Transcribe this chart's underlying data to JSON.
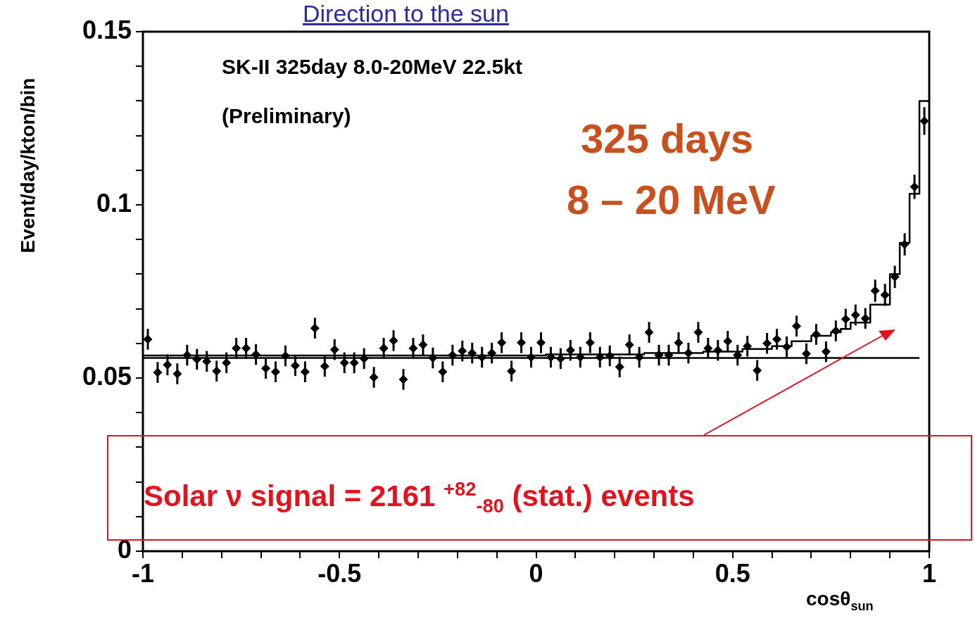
{
  "chart_data": {
    "type": "scatter",
    "title": "Direction to the sun",
    "xlabel": "cosθ$_{sun}$",
    "ylabel": "Event/day/kton/bin",
    "x": [
      -0.9875,
      -0.9625,
      -0.9375,
      -0.9125,
      -0.8875,
      -0.8625,
      -0.8375,
      -0.8125,
      -0.7875,
      -0.7625,
      -0.7375,
      -0.7125,
      -0.6875,
      -0.6625,
      -0.6375,
      -0.6125,
      -0.5875,
      -0.5625,
      -0.5375,
      -0.5125,
      -0.4875,
      -0.4625,
      -0.4375,
      -0.4125,
      -0.3875,
      -0.3625,
      -0.3375,
      -0.3125,
      -0.2875,
      -0.2625,
      -0.2375,
      -0.2125,
      -0.1875,
      -0.1625,
      -0.1375,
      -0.1125,
      -0.0875,
      -0.0625,
      -0.0375,
      -0.0125,
      0.0125,
      0.0375,
      0.0625,
      0.0875,
      0.1125,
      0.1375,
      0.1625,
      0.1875,
      0.2125,
      0.2375,
      0.2625,
      0.2875,
      0.3125,
      0.3375,
      0.3625,
      0.3875,
      0.4125,
      0.4375,
      0.4625,
      0.4875,
      0.5125,
      0.5375,
      0.5625,
      0.5875,
      0.6125,
      0.6375,
      0.6625,
      0.6875,
      0.7125,
      0.7375,
      0.7625,
      0.7875,
      0.8125,
      0.8375,
      0.8625,
      0.8875,
      0.9125,
      0.9375,
      0.9625,
      0.9875
    ],
    "series": [
      {
        "type": "scatter",
        "color": "#000000",
        "marker": "diamond",
        "values": [
          0.0612,
          0.0516,
          0.0538,
          0.0512,
          0.0566,
          0.0554,
          0.0548,
          0.052,
          0.0544,
          0.0586,
          0.0586,
          0.0568,
          0.0528,
          0.0518,
          0.0564,
          0.0536,
          0.0518,
          0.0644,
          0.0534,
          0.0582,
          0.0544,
          0.0544,
          0.0556,
          0.0502,
          0.0586,
          0.0608,
          0.0496,
          0.0586,
          0.0596,
          0.0558,
          0.0518,
          0.0566,
          0.0578,
          0.0572,
          0.056,
          0.0572,
          0.0602,
          0.052,
          0.0602,
          0.056,
          0.0602,
          0.056,
          0.0556,
          0.058,
          0.056,
          0.0602,
          0.056,
          0.0564,
          0.0532,
          0.0596,
          0.056,
          0.0632,
          0.0566,
          0.0566,
          0.0602,
          0.0572,
          0.0632,
          0.0586,
          0.058,
          0.0606,
          0.0566,
          0.0592,
          0.0522,
          0.06,
          0.0612,
          0.059,
          0.065,
          0.057,
          0.0626,
          0.0576,
          0.0636,
          0.067,
          0.0682,
          0.0672,
          0.0752,
          0.074,
          0.0792,
          0.0886,
          0.1052,
          0.1242
        ],
        "errors": [
          0.003,
          0.003,
          0.003,
          0.003,
          0.003,
          0.003,
          0.003,
          0.003,
          0.003,
          0.003,
          0.003,
          0.003,
          0.003,
          0.003,
          0.003,
          0.003,
          0.003,
          0.003,
          0.003,
          0.003,
          0.003,
          0.003,
          0.003,
          0.003,
          0.003,
          0.003,
          0.003,
          0.003,
          0.003,
          0.003,
          0.003,
          0.003,
          0.003,
          0.003,
          0.003,
          0.003,
          0.003,
          0.003,
          0.003,
          0.003,
          0.003,
          0.003,
          0.003,
          0.003,
          0.003,
          0.003,
          0.003,
          0.003,
          0.003,
          0.003,
          0.003,
          0.003,
          0.003,
          0.003,
          0.003,
          0.003,
          0.003,
          0.003,
          0.003,
          0.003,
          0.003,
          0.003,
          0.003,
          0.003,
          0.003,
          0.003,
          0.003,
          0.003,
          0.003,
          0.003,
          0.003,
          0.003,
          0.003,
          0.003,
          0.0032,
          0.0032,
          0.0032,
          0.0032,
          0.0035,
          0.004
        ]
      },
      {
        "type": "histogram",
        "color": "#000000",
        "bins": [
          -1,
          -0.975,
          -0.95,
          -0.925,
          -0.9,
          -0.875,
          -0.85,
          -0.825,
          -0.8,
          -0.775,
          -0.75,
          -0.725,
          -0.7,
          -0.675,
          -0.65,
          -0.625,
          -0.6,
          -0.575,
          -0.55,
          -0.525,
          -0.5,
          -0.475,
          -0.45,
          -0.425,
          -0.4,
          -0.375,
          -0.35,
          -0.325,
          -0.3,
          -0.275,
          -0.25,
          -0.225,
          -0.2,
          -0.175,
          -0.15,
          -0.125,
          -0.1,
          -0.075,
          -0.05,
          -0.025,
          0,
          0.025,
          0.05,
          0.075,
          0.1,
          0.125,
          0.15,
          0.175,
          0.2,
          0.225,
          0.25,
          0.275,
          0.3,
          0.325,
          0.35,
          0.375,
          0.4,
          0.425,
          0.45,
          0.475,
          0.5,
          0.525,
          0.55,
          0.575,
          0.6,
          0.625,
          0.65,
          0.675,
          0.7,
          0.725,
          0.75,
          0.775,
          0.8,
          0.825,
          0.85,
          0.875,
          0.9,
          0.925,
          0.95,
          0.975,
          1
        ],
        "values": [
          0.0565,
          0.0565,
          0.0565,
          0.0565,
          0.0565,
          0.0565,
          0.0565,
          0.0565,
          0.0565,
          0.0565,
          0.0565,
          0.0565,
          0.0565,
          0.0565,
          0.0565,
          0.0565,
          0.0565,
          0.0565,
          0.0565,
          0.0565,
          0.0565,
          0.0565,
          0.0565,
          0.0565,
          0.0565,
          0.0565,
          0.0565,
          0.0565,
          0.0565,
          0.0565,
          0.0565,
          0.0565,
          0.0565,
          0.0565,
          0.0565,
          0.0565,
          0.0565,
          0.0565,
          0.0565,
          0.0565,
          0.0565,
          0.0568,
          0.0568,
          0.0568,
          0.0568,
          0.0568,
          0.0568,
          0.0568,
          0.0568,
          0.0568,
          0.0568,
          0.0572,
          0.0572,
          0.0572,
          0.0572,
          0.0572,
          0.0572,
          0.0576,
          0.0576,
          0.0576,
          0.0576,
          0.0584,
          0.0584,
          0.0584,
          0.0592,
          0.0592,
          0.0606,
          0.0606,
          0.0622,
          0.0622,
          0.0632,
          0.0642,
          0.066,
          0.066,
          0.0712,
          0.0712,
          0.08,
          0.089,
          0.1032,
          0.13
        ]
      },
      {
        "type": "line",
        "color": "#000000",
        "x": [
          -1,
          0.975
        ],
        "values": [
          0.0558,
          0.0558
        ]
      }
    ],
    "xlim": [
      -1,
      1
    ],
    "xticks": [
      -1,
      {
        "value": -0.9,
        "label": null
      },
      {
        "value": -0.8,
        "label": null
      },
      {
        "value": -0.7,
        "label": null
      },
      {
        "value": -0.6,
        "label": null
      },
      -0.5,
      {
        "value": -0.4,
        "label": null
      },
      {
        "value": -0.3,
        "label": null
      },
      {
        "value": -0.2,
        "label": null
      },
      {
        "value": -0.1,
        "label": null
      },
      0,
      {
        "value": 0.1,
        "label": null
      },
      {
        "value": 0.2,
        "label": null
      },
      {
        "value": 0.3,
        "label": null
      },
      {
        "value": 0.4,
        "label": null
      },
      0.5,
      {
        "value": 0.6,
        "label": null
      },
      {
        "value": 0.7,
        "label": null
      },
      {
        "value": 0.8,
        "label": null
      },
      {
        "value": 0.9,
        "label": null
      },
      1
    ],
    "ylim": [
      0,
      0.15
    ],
    "yticks": [
      0,
      {
        "value": 0.01,
        "label": null
      },
      {
        "value": 0.02,
        "label": null
      },
      {
        "value": 0.03,
        "label": null
      },
      {
        "value": 0.04,
        "label": null
      },
      0.05,
      {
        "value": 0.06,
        "label": null
      },
      {
        "value": 0.07,
        "label": null
      },
      {
        "value": 0.08,
        "label": null
      },
      {
        "value": 0.09,
        "label": null
      },
      0.1,
      {
        "value": 0.11,
        "label": null
      },
      {
        "value": 0.12,
        "label": null
      },
      {
        "value": 0.13,
        "label": null
      },
      {
        "value": 0.14,
        "label": null
      },
      0.15
    ],
    "legend": false,
    "annotations": [
      "SK-II  325day  8.0-20MeV  22.5kt",
      "(Preliminary)",
      "325 days",
      "8 – 20 MeV",
      "Solar ν signal = 2161 $^{+82}$$_{-80}$ (stat.) events"
    ]
  }
}
